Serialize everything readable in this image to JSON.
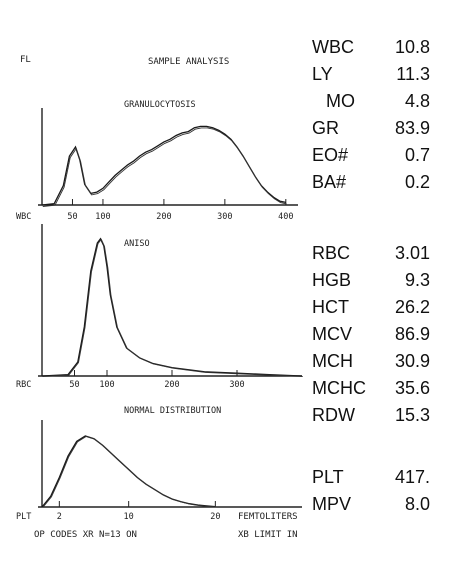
{
  "printout": {
    "title": "SAMPLE ANALYSIS",
    "flag_label": "FL",
    "footer_left": "OP CODES XR N=13 ON",
    "footer_right": "XB LIMIT IN",
    "unit_label": "FEMTOLITERS"
  },
  "chart_data": [
    {
      "type": "line",
      "id": "wbc",
      "annotation": "GRANULOCYTOSIS",
      "axis_name": "WBC",
      "xlim": [
        0,
        420
      ],
      "ticks": [
        50,
        100,
        200,
        300,
        400
      ],
      "x": [
        0,
        20,
        35,
        45,
        55,
        62,
        70,
        80,
        90,
        100,
        110,
        120,
        130,
        140,
        150,
        160,
        170,
        180,
        190,
        200,
        210,
        220,
        230,
        240,
        250,
        260,
        270,
        280,
        290,
        300,
        310,
        320,
        330,
        340,
        350,
        360,
        370,
        380,
        390,
        400
      ],
      "y": [
        0,
        1,
        15,
        38,
        45,
        35,
        16,
        9,
        10,
        13,
        18,
        23,
        27,
        31,
        34,
        38,
        41,
        43,
        46,
        49,
        51,
        54,
        56,
        57,
        60,
        61,
        61,
        60,
        58,
        55,
        51,
        45,
        38,
        30,
        22,
        15,
        10,
        6,
        3,
        2
      ]
    },
    {
      "type": "line",
      "id": "rbc",
      "annotation": "ANISO",
      "axis_name": "RBC",
      "xlim": [
        0,
        400
      ],
      "ticks": [
        50,
        100,
        200,
        300
      ],
      "x": [
        0,
        40,
        55,
        65,
        75,
        85,
        90,
        95,
        100,
        105,
        115,
        130,
        150,
        170,
        200,
        250,
        300,
        350,
        400
      ],
      "y": [
        0,
        1,
        10,
        35,
        75,
        95,
        98,
        93,
        78,
        58,
        35,
        20,
        13,
        9,
        6,
        3,
        2,
        1,
        0
      ]
    },
    {
      "type": "line",
      "id": "plt",
      "annotation": "NORMAL DISTRIBUTION",
      "axis_name": "PLT",
      "xlim": [
        0,
        30
      ],
      "ticks": [
        2,
        10,
        20
      ],
      "x": [
        0,
        1,
        2,
        3,
        4,
        5,
        6,
        7,
        8,
        9,
        10,
        11,
        12,
        13,
        14,
        15,
        16,
        17,
        18,
        19,
        20
      ],
      "y": [
        0,
        8,
        22,
        38,
        49,
        53,
        51,
        46,
        40,
        34,
        28,
        22,
        17,
        13,
        9,
        6,
        4,
        2.5,
        1.5,
        0.8,
        0.3
      ]
    }
  ],
  "results": {
    "wbc_group": [
      {
        "label": "WBC",
        "value": "10.8"
      },
      {
        "label": "LY",
        "value": "11.3"
      },
      {
        "label": "MO",
        "value": "4.8"
      },
      {
        "label": "GR",
        "value": "83.9"
      },
      {
        "label": "EO#",
        "value": "0.7"
      },
      {
        "label": "BA#",
        "value": "0.2"
      }
    ],
    "rbc_group": [
      {
        "label": "RBC",
        "value": "3.01"
      },
      {
        "label": "HGB",
        "value": "9.3"
      },
      {
        "label": "HCT",
        "value": "26.2"
      },
      {
        "label": "MCV",
        "value": "86.9"
      },
      {
        "label": "MCH",
        "value": "30.9"
      },
      {
        "label": "MCHC",
        "value": "35.6"
      },
      {
        "label": "RDW",
        "value": "15.3"
      }
    ],
    "plt_group": [
      {
        "label": "PLT",
        "value": "417."
      },
      {
        "label": "MPV",
        "value": "8.0"
      }
    ]
  }
}
